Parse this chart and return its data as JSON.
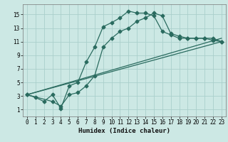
{
  "xlabel": "Humidex (Indice chaleur)",
  "bg_color": "#cce8e4",
  "grid_color": "#aacfcb",
  "line_color": "#2a6b5f",
  "xlim": [
    -0.5,
    23.5
  ],
  "ylim": [
    0,
    16.5
  ],
  "xticks": [
    0,
    1,
    2,
    3,
    4,
    5,
    6,
    7,
    8,
    9,
    10,
    11,
    12,
    13,
    14,
    15,
    16,
    17,
    18,
    19,
    20,
    21,
    22,
    23
  ],
  "yticks": [
    1,
    3,
    5,
    7,
    9,
    11,
    13,
    15
  ],
  "curve1_x": [
    0,
    1,
    2,
    3,
    4,
    5,
    6,
    7,
    8,
    9,
    10,
    11,
    12,
    13,
    14,
    15,
    16,
    17,
    18,
    19,
    20,
    21,
    22,
    23
  ],
  "curve1_y": [
    3.2,
    2.8,
    2.2,
    3.2,
    1.2,
    4.5,
    5.0,
    8.0,
    10.2,
    13.2,
    13.8,
    14.5,
    15.5,
    15.2,
    15.2,
    14.8,
    12.5,
    12.0,
    11.5,
    11.5,
    11.5,
    11.5,
    11.2,
    11.0
  ],
  "curve2_x": [
    0,
    3,
    4,
    5,
    6,
    7,
    8,
    9,
    10,
    11,
    12,
    13,
    14,
    15,
    16,
    17,
    18,
    19,
    20,
    21,
    22,
    23
  ],
  "curve2_y": [
    3.2,
    2.2,
    1.5,
    3.2,
    3.5,
    4.5,
    6.0,
    10.2,
    11.5,
    12.5,
    13.0,
    14.0,
    14.5,
    15.2,
    14.8,
    12.2,
    11.8,
    11.5,
    11.5,
    11.5,
    11.5,
    11.0
  ],
  "line1_x": [
    0,
    23
  ],
  "line1_y": [
    3.2,
    11.0
  ],
  "line2_x": [
    0,
    23
  ],
  "line2_y": [
    3.2,
    11.5
  ]
}
